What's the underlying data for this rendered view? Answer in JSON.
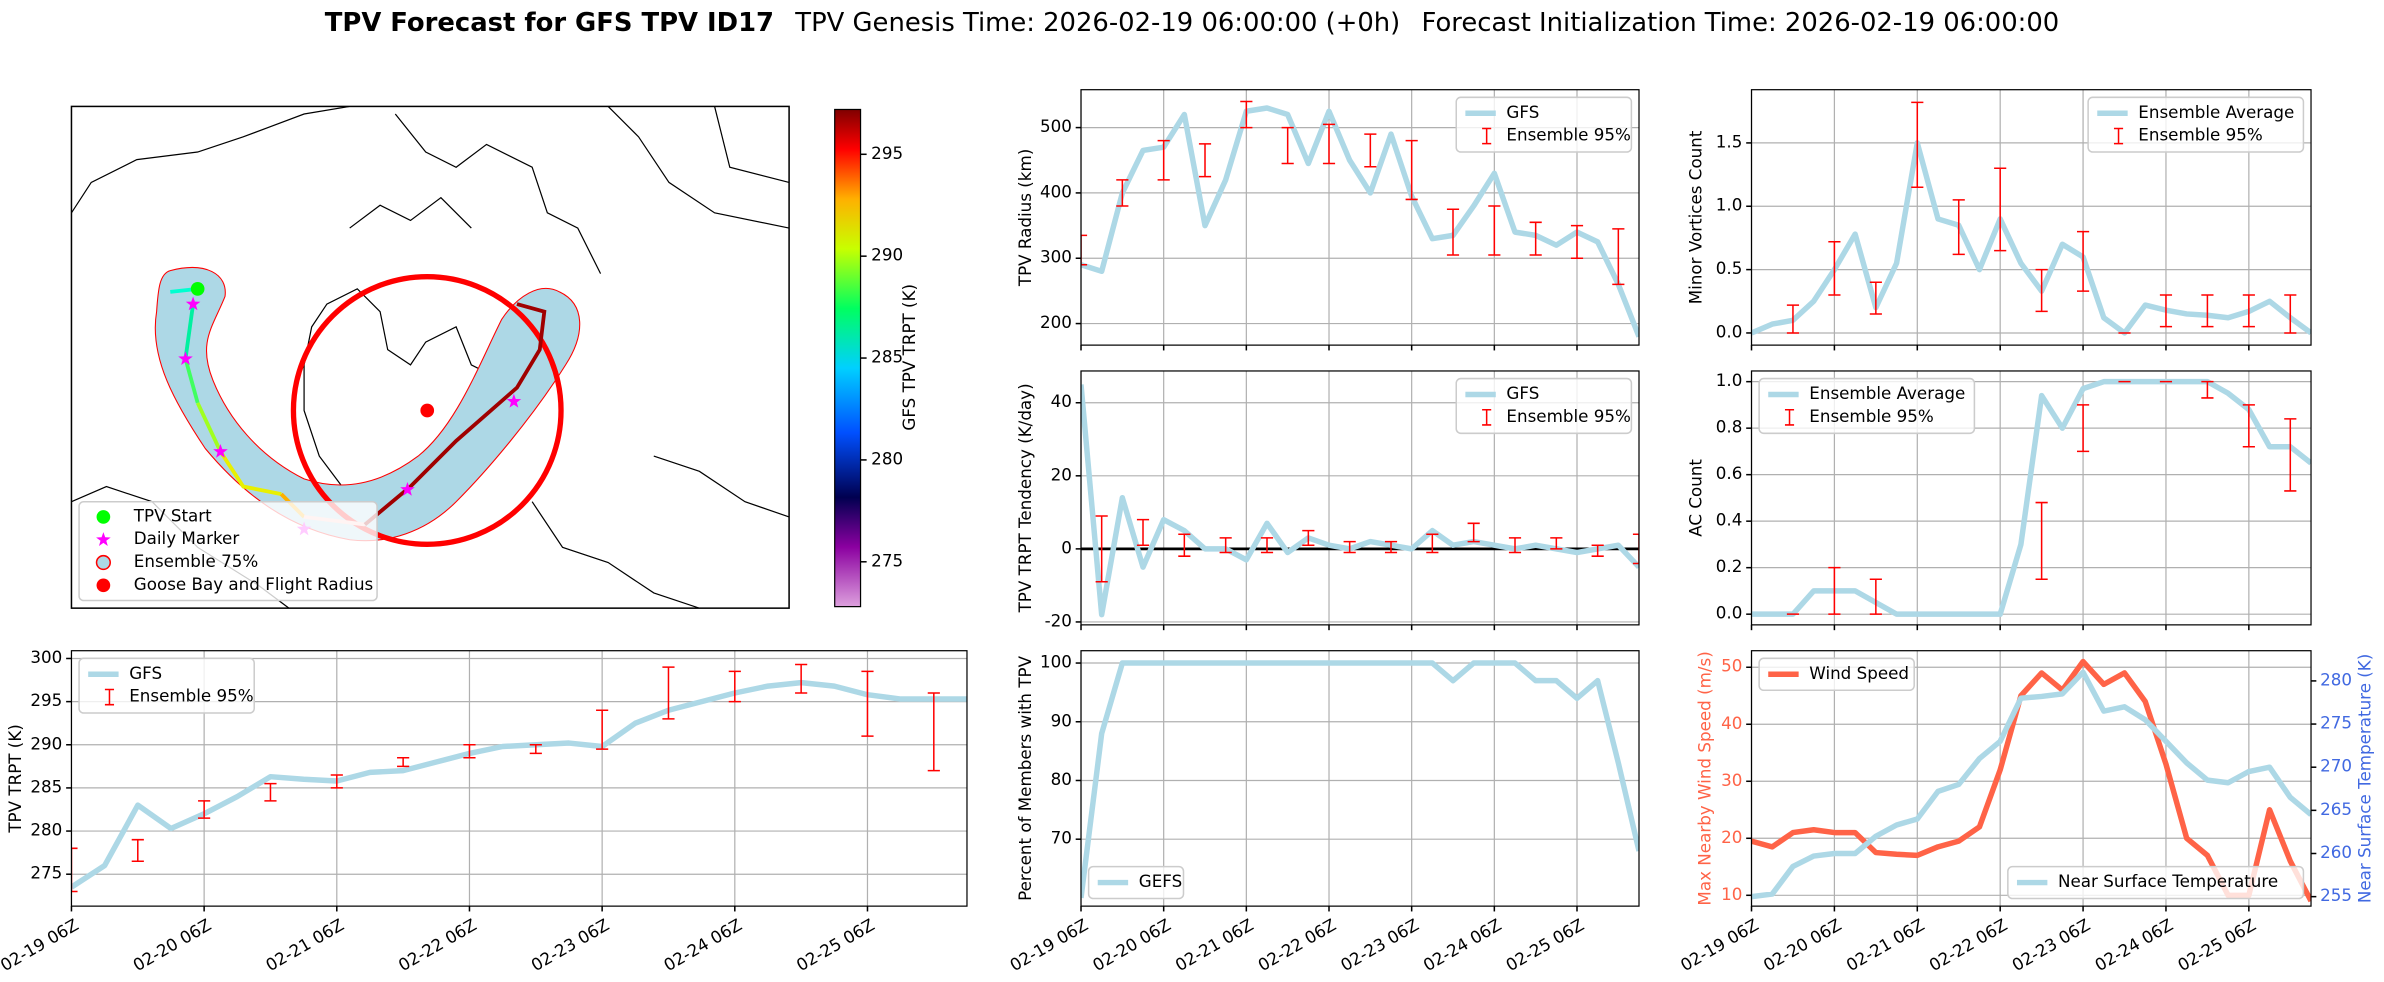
{
  "title": {
    "main": "TPV Forecast for GFS TPV ID17",
    "genesis": "TPV Genesis Time: 2026-02-19 06:00:00 (+0h)",
    "init": "Forecast Initialization Time: 2026-02-19 06:00:00"
  },
  "map": {
    "legend": [
      "TPV Start",
      "Daily Marker",
      "Ensemble 75%",
      "Goose Bay and Flight Radius"
    ],
    "colorbar": {
      "label": "GFS TPV TRPT (K)",
      "lim": [
        272.8,
        297.2
      ],
      "ticks": [
        275,
        280,
        285,
        290,
        295
      ]
    }
  },
  "chart_data": [
    {
      "type": "line",
      "ylabel": "TPV TRPT (K)",
      "grid": true,
      "legend": "upper left",
      "x": [
        0,
        6,
        12,
        18,
        24,
        30,
        36,
        42,
        48,
        54,
        60,
        66,
        72,
        78,
        84,
        90,
        96,
        102,
        108,
        114,
        120,
        126,
        132,
        138,
        144,
        150,
        156,
        162
      ],
      "xlim": [
        0,
        162
      ],
      "xticks": [
        {
          "value": 0,
          "label": "02-19 06Z"
        },
        {
          "value": 24,
          "label": "02-20 06Z"
        },
        {
          "value": 48,
          "label": "02-21 06Z"
        },
        {
          "value": 72,
          "label": "02-22 06Z"
        },
        {
          "value": 96,
          "label": "02-23 06Z"
        },
        {
          "value": 120,
          "label": "02-24 06Z"
        },
        {
          "value": 144,
          "label": "02-25 06Z"
        }
      ],
      "ylim": [
        271.3,
        300.9
      ],
      "yticks": [
        275,
        280,
        285,
        290,
        295,
        300
      ],
      "series": [
        {
          "name": "GFS",
          "color": "#add8e6",
          "values": [
            273.5,
            276,
            283,
            280.3,
            282,
            284,
            286.3,
            286,
            285.8,
            286.8,
            287,
            288,
            289,
            289.8,
            290,
            290.2,
            289.8,
            292.5,
            294,
            295,
            296,
            296.8,
            297.2,
            296.8,
            295.8,
            295.3,
            295.3,
            295.3
          ]
        }
      ],
      "errorbars": {
        "name": "Ensemble 95%",
        "color": "#ff0000",
        "x": [
          0,
          12,
          24,
          36,
          48,
          60,
          72,
          84,
          96,
          108,
          120,
          132,
          144,
          156
        ],
        "low": [
          273,
          276.5,
          281.5,
          283.5,
          285,
          287.5,
          288.5,
          289,
          289.5,
          293,
          295,
          296,
          291,
          287
        ],
        "high": [
          278,
          279,
          283.5,
          285.5,
          286.5,
          288.5,
          290,
          290,
          294,
          299,
          298.5,
          299.3,
          298.5,
          296
        ]
      }
    },
    {
      "type": "line",
      "ylabel": "TPV Radius (km)",
      "grid": true,
      "legend": "upper right",
      "x": [
        0,
        6,
        12,
        18,
        24,
        30,
        36,
        42,
        48,
        54,
        60,
        66,
        72,
        78,
        84,
        90,
        96,
        102,
        108,
        114,
        120,
        126,
        132,
        138,
        144,
        150,
        156,
        162
      ],
      "xlim": [
        0,
        162
      ],
      "xticks": [
        0,
        24,
        48,
        72,
        96,
        120,
        144
      ],
      "ylim": [
        167,
        558
      ],
      "yticks": [
        200,
        300,
        400,
        500
      ],
      "series": [
        {
          "name": "GFS",
          "color": "#add8e6",
          "values": [
            290,
            280,
            400,
            465,
            470,
            520,
            350,
            420,
            525,
            530,
            520,
            445,
            525,
            450,
            400,
            490,
            395,
            330,
            335,
            380,
            430,
            340,
            335,
            320,
            340,
            325,
            260,
            180
          ]
        }
      ],
      "errorbars": {
        "name": "Ensemble 95%",
        "color": "#ff0000",
        "x": [
          0,
          12,
          24,
          36,
          48,
          60,
          72,
          84,
          96,
          108,
          120,
          132,
          144,
          156
        ],
        "low": [
          290,
          380,
          420,
          425,
          500,
          445,
          445,
          440,
          390,
          305,
          305,
          305,
          300,
          260
        ],
        "high": [
          335,
          420,
          480,
          475,
          540,
          500,
          505,
          490,
          480,
          375,
          380,
          355,
          350,
          345
        ]
      }
    },
    {
      "type": "line",
      "ylabel": "TPV TRPT Tendency (K/day)",
      "grid": true,
      "legend": "upper right",
      "hline": 0,
      "hline_color": "#000000",
      "x": [
        0,
        6,
        12,
        18,
        24,
        30,
        36,
        42,
        48,
        54,
        60,
        66,
        72,
        78,
        84,
        90,
        96,
        102,
        108,
        114,
        120,
        126,
        132,
        138,
        144,
        150,
        156,
        162
      ],
      "xlim": [
        0,
        162
      ],
      "xticks": [
        0,
        24,
        48,
        72,
        96,
        120,
        144
      ],
      "ylim": [
        -20.8,
        48.7
      ],
      "yticks": [
        -20,
        0,
        20,
        40
      ],
      "series": [
        {
          "name": "GFS",
          "color": "#add8e6",
          "values": [
            45,
            -18,
            14,
            -5,
            8,
            5,
            0,
            0,
            -3,
            7,
            -1,
            3,
            1,
            0,
            2,
            1,
            0,
            5,
            1,
            2,
            1,
            0,
            1,
            0,
            -1,
            0,
            1,
            -5
          ]
        }
      ],
      "errorbars": {
        "name": "Ensemble 95%",
        "color": "#ff0000",
        "x": [
          6,
          18,
          30,
          42,
          54,
          66,
          78,
          90,
          102,
          114,
          126,
          138,
          150,
          162
        ],
        "low": [
          -9,
          1,
          -2,
          -1,
          -1,
          1,
          -1,
          -1,
          -1,
          2,
          -1,
          0,
          -2,
          -4
        ],
        "high": [
          9,
          8,
          4,
          3,
          3,
          5,
          2,
          2,
          4,
          7,
          3,
          3,
          1,
          4
        ]
      }
    },
    {
      "type": "line",
      "ylabel": "Percent of Members with TPV",
      "grid": true,
      "legend": "lower left",
      "x": [
        0,
        6,
        12,
        18,
        24,
        30,
        36,
        42,
        48,
        54,
        60,
        66,
        72,
        78,
        84,
        90,
        96,
        102,
        108,
        114,
        120,
        126,
        132,
        138,
        144,
        150,
        156,
        162
      ],
      "xlim": [
        0,
        162
      ],
      "xticks": [
        {
          "value": 0,
          "label": "02-19 06Z"
        },
        {
          "value": 24,
          "label": "02-20 06Z"
        },
        {
          "value": 48,
          "label": "02-21 06Z"
        },
        {
          "value": 72,
          "label": "02-22 06Z"
        },
        {
          "value": 96,
          "label": "02-23 06Z"
        },
        {
          "value": 120,
          "label": "02-24 06Z"
        },
        {
          "value": 144,
          "label": "02-25 06Z"
        }
      ],
      "ylim": [
        58.6,
        102.1
      ],
      "yticks": [
        70,
        80,
        90,
        100
      ],
      "series": [
        {
          "name": "GEFS",
          "color": "#add8e6",
          "values": [
            60,
            88,
            100,
            100,
            100,
            100,
            100,
            100,
            100,
            100,
            100,
            100,
            100,
            100,
            100,
            100,
            100,
            100,
            97,
            100,
            100,
            100,
            97,
            97,
            94,
            97,
            83,
            68
          ]
        }
      ]
    },
    {
      "type": "line",
      "ylabel": "Minor Vortices Count",
      "grid": true,
      "legend": "upper right",
      "x": [
        0,
        6,
        12,
        18,
        24,
        30,
        36,
        42,
        48,
        54,
        60,
        66,
        72,
        78,
        84,
        90,
        96,
        102,
        108,
        114,
        120,
        126,
        132,
        138,
        144,
        150,
        156,
        162
      ],
      "xlim": [
        0,
        162
      ],
      "xticks": [
        0,
        24,
        48,
        72,
        96,
        120,
        144
      ],
      "ylim": [
        -0.096,
        1.92
      ],
      "yticks": [
        {
          "value": 0,
          "label": "0.0"
        },
        0.5,
        {
          "value": 1,
          "label": "1.0"
        },
        1.5
      ],
      "series": [
        {
          "name": "Ensemble Average",
          "color": "#add8e6",
          "values": [
            0,
            0.07,
            0.1,
            0.25,
            0.5,
            0.78,
            0.2,
            0.55,
            1.5,
            0.9,
            0.85,
            0.5,
            0.9,
            0.55,
            0.33,
            0.7,
            0.6,
            0.12,
            0,
            0.22,
            0.18,
            0.15,
            0.14,
            0.12,
            0.17,
            0.25,
            0.12,
            0
          ]
        }
      ],
      "errorbars": {
        "name": "Ensemble 95%",
        "color": "#ff0000",
        "x": [
          12,
          24,
          36,
          48,
          60,
          72,
          84,
          96,
          108,
          120,
          132,
          144,
          156
        ],
        "low": [
          0,
          0.3,
          0.15,
          1.15,
          0.62,
          0.65,
          0.17,
          0.33,
          0,
          0.05,
          0.05,
          0.05,
          0
        ],
        "high": [
          0.22,
          0.72,
          0.4,
          1.82,
          1.05,
          1.3,
          0.5,
          0.8,
          0,
          0.3,
          0.3,
          0.3,
          0.3
        ]
      }
    },
    {
      "type": "line",
      "ylabel": "AC Count",
      "grid": true,
      "legend": "upper left",
      "x": [
        0,
        6,
        12,
        18,
        24,
        30,
        36,
        42,
        48,
        54,
        60,
        66,
        72,
        78,
        84,
        90,
        96,
        102,
        108,
        114,
        120,
        126,
        132,
        138,
        144,
        150,
        156,
        162
      ],
      "xlim": [
        0,
        162
      ],
      "xticks": [
        0,
        24,
        48,
        72,
        96,
        120,
        144
      ],
      "ylim": [
        -0.046,
        1.046
      ],
      "yticks": [
        {
          "value": 0,
          "label": "0.0"
        },
        0.2,
        0.4,
        0.6,
        0.8,
        {
          "value": 1,
          "label": "1.0"
        }
      ],
      "series": [
        {
          "name": "Ensemble Average",
          "color": "#add8e6",
          "values": [
            0,
            0,
            0,
            0.1,
            0.1,
            0.1,
            0.05,
            0,
            0,
            0,
            0,
            0,
            0,
            0.3,
            0.94,
            0.8,
            0.97,
            1,
            1,
            1,
            1,
            1,
            1,
            0.95,
            0.88,
            0.72,
            0.72,
            0.65
          ]
        }
      ],
      "errorbars": {
        "name": "Ensemble 95%",
        "color": "#ff0000",
        "x": [
          12,
          24,
          36,
          84,
          96,
          108,
          120,
          132,
          144,
          156
        ],
        "low": [
          0,
          0,
          0,
          0.15,
          0.7,
          1,
          1,
          0.93,
          0.72,
          0.53
        ],
        "high": [
          0,
          0.2,
          0.15,
          0.48,
          0.9,
          1,
          1,
          1,
          0.9,
          0.84
        ]
      }
    },
    {
      "type": "line",
      "ylabel": "Max Nearby Wind Speed (m/s)",
      "y2label": "Near Surface Temperature (K)",
      "grid": true,
      "legend": "upper left",
      "y2legend": "lower right",
      "x": [
        0,
        6,
        12,
        18,
        24,
        30,
        36,
        42,
        48,
        54,
        60,
        66,
        72,
        78,
        84,
        90,
        96,
        102,
        108,
        114,
        120,
        126,
        132,
        138,
        144,
        150,
        156,
        162
      ],
      "xlim": [
        0,
        162
      ],
      "xticks": [
        {
          "value": 0,
          "label": "02-19 06Z"
        },
        {
          "value": 24,
          "label": "02-20 06Z"
        },
        {
          "value": 48,
          "label": "02-21 06Z"
        },
        {
          "value": 72,
          "label": "02-22 06Z"
        },
        {
          "value": 96,
          "label": "02-23 06Z"
        },
        {
          "value": 120,
          "label": "02-24 06Z"
        },
        {
          "value": 144,
          "label": "02-25 06Z"
        }
      ],
      "ylim": [
        8.1,
        52.9
      ],
      "yticks": [
        10,
        20,
        30,
        40,
        50
      ],
      "y2lim": [
        253.9,
        283.5
      ],
      "y2ticks": [
        255,
        260,
        265,
        270,
        275,
        280
      ],
      "series": [
        {
          "name": "Wind Speed",
          "color": "#ff6347",
          "values": [
            19.5,
            18.5,
            21,
            21.5,
            21,
            21,
            17.5,
            17.2,
            17,
            18.5,
            19.5,
            22,
            32,
            45,
            49,
            46,
            51,
            47,
            49,
            44,
            33,
            20,
            17,
            10,
            10,
            25,
            16,
            9
          ]
        },
        {
          "name": "Near Surface Temperature",
          "color": "#add8e6",
          "axis": "y2",
          "values": [
            255,
            255.3,
            258.5,
            259.7,
            260,
            260,
            262,
            263.3,
            264,
            267.2,
            268,
            271,
            273,
            278,
            278.2,
            278.5,
            281,
            276.5,
            277,
            275.5,
            273,
            270.5,
            268.5,
            268.2,
            269.5,
            270,
            266.5,
            264.5
          ]
        }
      ]
    }
  ]
}
